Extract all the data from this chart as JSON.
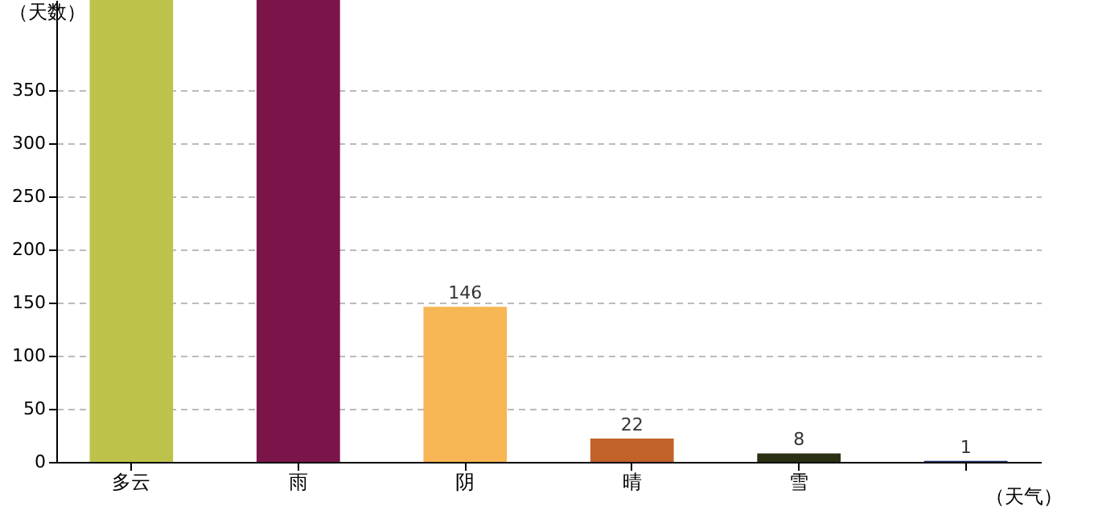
{
  "chart_data": {
    "type": "bar",
    "ylabel": "（天数）",
    "xlabel": "（天气）",
    "categories": [
      "多云",
      "雨",
      "阴",
      "晴",
      "雪",
      null
    ],
    "values": [
      435,
      435,
      146,
      22,
      8,
      1
    ],
    "colors": [
      "#bdc34a",
      "#7b1449",
      "#f6b654",
      "#c0622a",
      "#2a3113",
      "#1f2d6b"
    ],
    "value_labels": [
      null,
      null,
      "146",
      "22",
      "8",
      "1"
    ],
    "ylim": [
      0,
      435
    ],
    "yticks": [
      0,
      50,
      100,
      150,
      200,
      250,
      300,
      350
    ],
    "grid": "y",
    "legend": false
  }
}
